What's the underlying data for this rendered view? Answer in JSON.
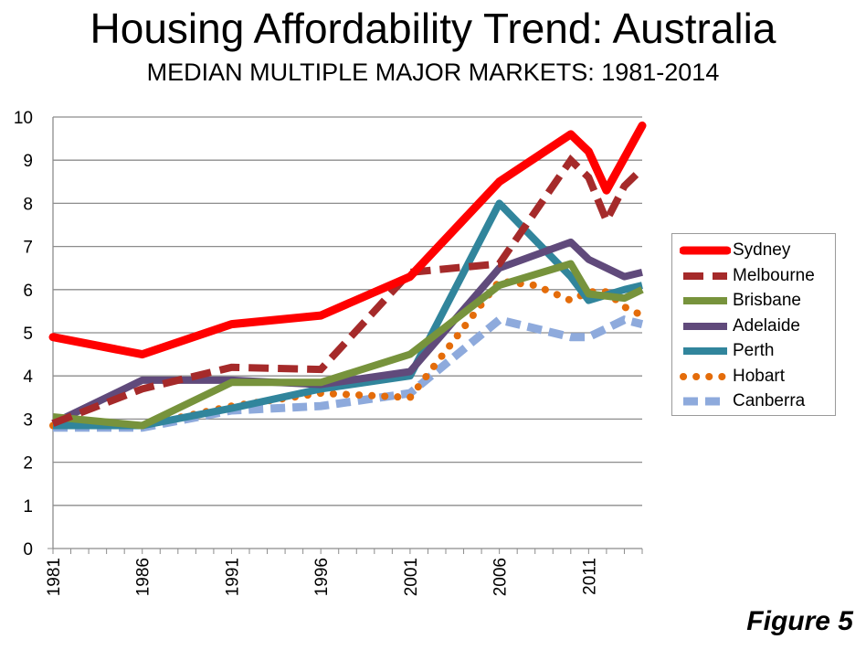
{
  "chart_data": {
    "type": "line",
    "title": "Housing Affordability Trend: Australia",
    "subtitle": "MEDIAN MULTIPLE MAJOR MARKETS: 1981-2014",
    "xlabel": "",
    "ylabel": "",
    "xlim": [
      1981,
      2014
    ],
    "ylim": [
      0,
      10
    ],
    "x_ticks": [
      1981,
      1986,
      1991,
      1996,
      2001,
      2006,
      2011
    ],
    "y_ticks": [
      0,
      1,
      2,
      3,
      4,
      5,
      6,
      7,
      8,
      9,
      10
    ],
    "grid": "horizontal",
    "legend_position": "right",
    "series": [
      {
        "name": "Sydney",
        "color": "#ff0000",
        "style": "solid",
        "x": [
          1981,
          1986,
          1991,
          1996,
          2001,
          2006,
          2010,
          2011,
          2012,
          2014
        ],
        "values": [
          4.9,
          4.5,
          5.2,
          5.4,
          6.3,
          8.5,
          9.6,
          9.2,
          8.3,
          9.8
        ]
      },
      {
        "name": "Melbourne",
        "color": "#a52a2a",
        "style": "dashed",
        "x": [
          1981,
          1986,
          1991,
          1996,
          2001,
          2006,
          2010,
          2011,
          2012,
          2013,
          2014
        ],
        "values": [
          2.9,
          3.7,
          4.2,
          4.15,
          6.4,
          6.6,
          9.0,
          8.6,
          7.6,
          8.4,
          8.8
        ]
      },
      {
        "name": "Brisbane",
        "color": "#77933c",
        "style": "solid",
        "x": [
          1981,
          1986,
          1991,
          1996,
          2001,
          2006,
          2010,
          2011,
          2013,
          2014
        ],
        "values": [
          3.05,
          2.85,
          3.85,
          3.85,
          4.5,
          6.1,
          6.6,
          5.9,
          5.8,
          6.0
        ]
      },
      {
        "name": "Adelaide",
        "color": "#604a7b",
        "style": "solid",
        "x": [
          1981,
          1986,
          1991,
          1996,
          2001,
          2006,
          2010,
          2011,
          2013,
          2014
        ],
        "values": [
          2.9,
          3.9,
          3.9,
          3.8,
          4.1,
          6.5,
          7.1,
          6.7,
          6.3,
          6.4
        ]
      },
      {
        "name": "Perth",
        "color": "#31859c",
        "style": "solid",
        "x": [
          1981,
          1986,
          1991,
          1996,
          2001,
          2006,
          2010,
          2011,
          2013,
          2014
        ],
        "values": [
          2.85,
          2.85,
          3.25,
          3.7,
          4.0,
          8.0,
          6.3,
          5.75,
          6.0,
          6.1
        ]
      },
      {
        "name": "Hobart",
        "color": "#e46c0a",
        "style": "dotted",
        "x": [
          1981,
          1986,
          1991,
          1996,
          2001,
          2006,
          2008,
          2010,
          2011,
          2012,
          2013,
          2014
        ],
        "values": [
          2.85,
          2.85,
          3.3,
          3.6,
          3.5,
          6.2,
          6.1,
          5.75,
          5.95,
          5.95,
          5.6,
          5.4
        ]
      },
      {
        "name": "Canberra",
        "color": "#8eaadc",
        "style": "dashed",
        "x": [
          1981,
          1986,
          1991,
          1996,
          2001,
          2006,
          2010,
          2011,
          2013,
          2014
        ],
        "values": [
          2.8,
          2.8,
          3.2,
          3.3,
          3.6,
          5.3,
          4.9,
          4.9,
          5.3,
          5.2
        ]
      }
    ]
  },
  "figure_label": "Figure 5"
}
